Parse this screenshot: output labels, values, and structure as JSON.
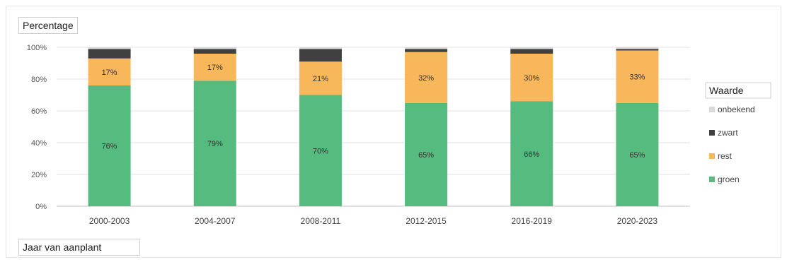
{
  "chart_data": {
    "type": "bar",
    "stacked": true,
    "ylabel": "Percentage",
    "xlabel": "Jaar van aanplant",
    "categories": [
      "2000-2003",
      "2004-2007",
      "2008-2011",
      "2012-2015",
      "2016-2019",
      "2020-2023"
    ],
    "ylim": [
      0,
      100
    ],
    "yticks": [
      "0%",
      "20%",
      "40%",
      "60%",
      "80%",
      "100%"
    ],
    "grid": true,
    "legend_title": "Waarde",
    "legend_position": "right",
    "legend": [
      {
        "name": "onbekend",
        "color": "#d9d9d9"
      },
      {
        "name": "zwart",
        "color": "#404040"
      },
      {
        "name": "rest",
        "color": "#f8b75a"
      },
      {
        "name": "groen",
        "color": "#55bb7e"
      }
    ],
    "series": [
      {
        "name": "groen",
        "color": "#55bb7e",
        "values": [
          76,
          79,
          70,
          65,
          66,
          65
        ],
        "labels": [
          "76%",
          "79%",
          "70%",
          "65%",
          "66%",
          "65%"
        ]
      },
      {
        "name": "rest",
        "color": "#f8b75a",
        "values": [
          17,
          17,
          21,
          32,
          30,
          33
        ],
        "labels": [
          "17%",
          "17%",
          "21%",
          "32%",
          "30%",
          "33%"
        ]
      },
      {
        "name": "zwart",
        "color": "#404040",
        "values": [
          6,
          3,
          8,
          2,
          3,
          1
        ],
        "labels": []
      },
      {
        "name": "onbekend",
        "color": "#d9d9d9",
        "values": [
          1,
          1,
          1,
          1,
          1,
          1
        ],
        "labels": []
      }
    ]
  }
}
